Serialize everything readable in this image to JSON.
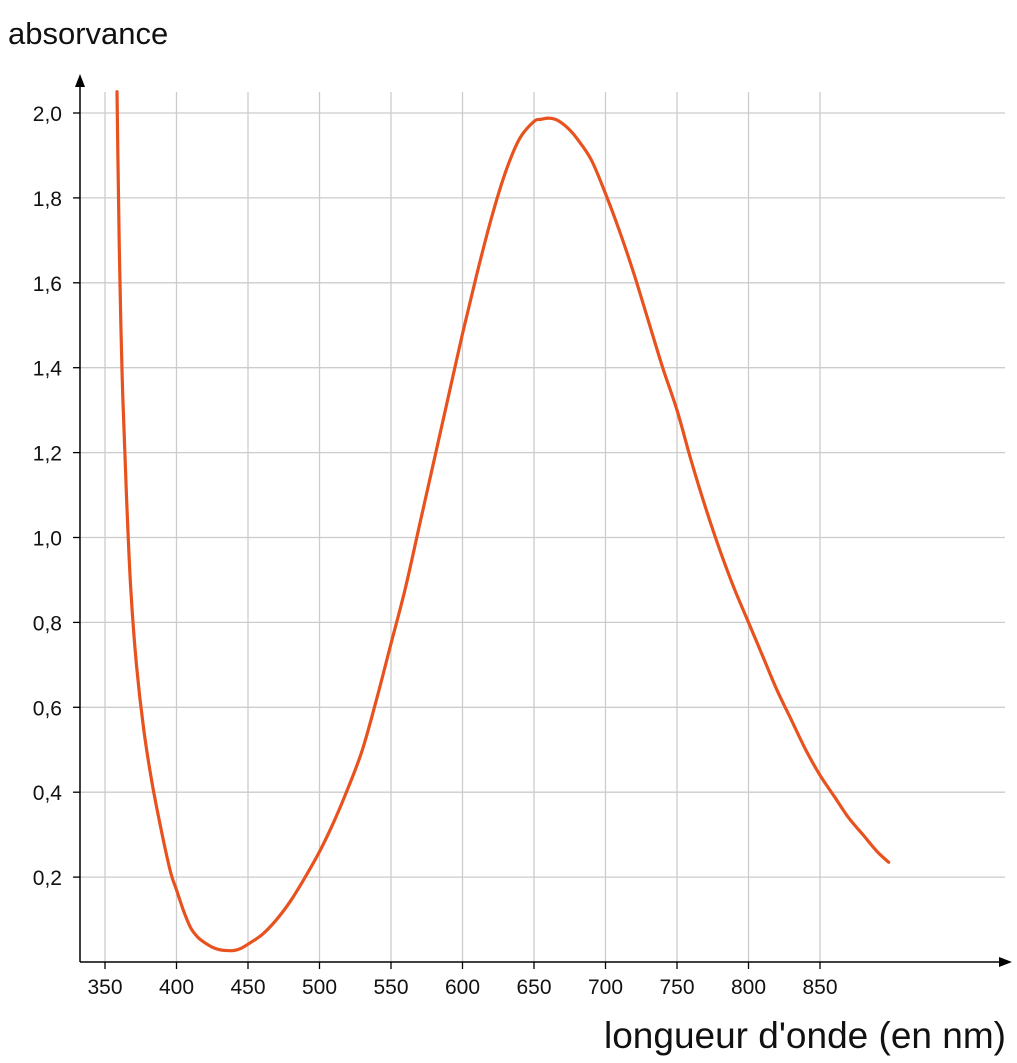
{
  "chart_data": {
    "type": "line",
    "title": "",
    "ylabel": "absorvance",
    "xlabel": "longueur d'onde (en nm)",
    "xlim": [
      342,
      895
    ],
    "ylim": [
      0,
      2.05
    ],
    "x_ticks": [
      350,
      400,
      450,
      500,
      550,
      600,
      650,
      700,
      750,
      800,
      850
    ],
    "x_tick_labels": [
      "350",
      "400",
      "450",
      "500",
      "550",
      "600",
      "650",
      "700",
      "750",
      "800",
      "850"
    ],
    "y_ticks": [
      0.2,
      0.4,
      0.6,
      0.8,
      1.0,
      1.2,
      1.4,
      1.6,
      1.8,
      2.0
    ],
    "y_tick_labels": [
      "0,2",
      "0,4",
      "0,6",
      "0,8",
      "1,0",
      "1,2",
      "1,4",
      "1,6",
      "1,8",
      "2,0"
    ],
    "grid": true,
    "colors": {
      "curve": "#e8521f",
      "grid": "#cccccc",
      "axis": "#000000",
      "text": "#111111"
    },
    "series": [
      {
        "x": [
          358.4,
          359.0,
          360.0,
          362.0,
          365.0,
          368.0,
          372.0,
          377.0,
          383.0,
          390.0,
          396.0,
          400.0,
          405.0,
          410.0,
          415.0,
          420.0,
          425.0,
          430.0,
          435.0,
          440.0,
          445.0,
          450.0,
          460.0,
          470.0,
          480.0,
          490.0,
          500.0,
          510.0,
          520.0,
          530.0,
          540.0,
          550.0,
          560.0,
          570.0,
          580.0,
          590.0,
          600.0,
          610.0,
          620.0,
          630.0,
          640.0,
          650.0,
          655.0,
          660.0,
          665.0,
          670.0,
          675.0,
          680.0,
          690.0,
          700.0,
          710.0,
          720.0,
          730.0,
          740.0,
          750.0,
          760.0,
          770.0,
          780.0,
          790.0,
          800.0,
          810.0,
          820.0,
          830.0,
          840.0,
          850.0,
          860.0,
          870.0,
          880.0,
          890.0,
          898.0
        ],
        "y": [
          2.05,
          1.9,
          1.68,
          1.38,
          1.1,
          0.88,
          0.7,
          0.55,
          0.42,
          0.3,
          0.21,
          0.17,
          0.12,
          0.08,
          0.058,
          0.045,
          0.035,
          0.029,
          0.027,
          0.027,
          0.032,
          0.042,
          0.065,
          0.1,
          0.145,
          0.2,
          0.26,
          0.33,
          0.41,
          0.5,
          0.62,
          0.75,
          0.88,
          1.03,
          1.18,
          1.33,
          1.48,
          1.62,
          1.75,
          1.86,
          1.94,
          1.98,
          1.985,
          1.988,
          1.985,
          1.975,
          1.96,
          1.94,
          1.89,
          1.81,
          1.72,
          1.62,
          1.51,
          1.4,
          1.3,
          1.18,
          1.07,
          0.97,
          0.88,
          0.8,
          0.72,
          0.64,
          0.57,
          0.5,
          0.44,
          0.39,
          0.34,
          0.3,
          0.26,
          0.235
        ]
      }
    ]
  }
}
